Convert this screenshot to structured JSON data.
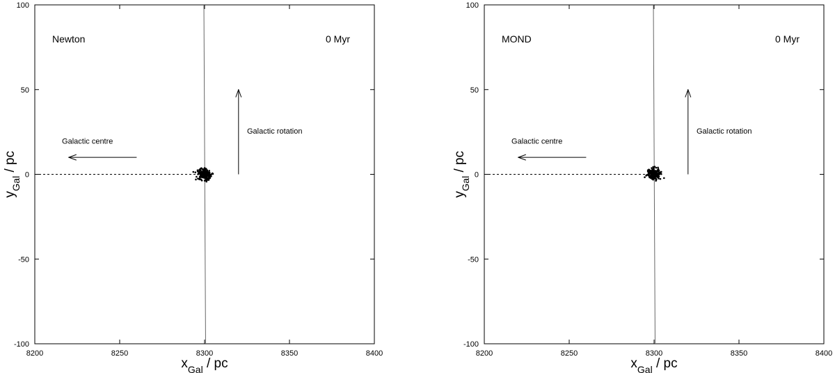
{
  "chart_data": [
    {
      "type": "scatter",
      "model_label": "Newton",
      "time_label": "0 Myr",
      "xlabel_main": "x",
      "xlabel_sub": "Gal",
      "xlabel_unit": " / pc",
      "ylabel_main": "y",
      "ylabel_sub": "Gal",
      "ylabel_unit": " / pc",
      "xlim": [
        8200,
        8400
      ],
      "ylim": [
        -100,
        100
      ],
      "xticks": [
        8200,
        8250,
        8300,
        8350,
        8400
      ],
      "yticks": [
        -100,
        -50,
        0,
        50,
        100
      ],
      "grid": false,
      "cluster": {
        "x": 8300,
        "y": 0,
        "spread_pc": 3
      },
      "orbit_line": [
        {
          "x": 8299.6,
          "y": 100
        },
        {
          "x": 8300.6,
          "y": -100
        }
      ],
      "dashed_line": [
        {
          "x": 8200,
          "y": 0
        },
        {
          "x": 8296,
          "y": 0
        }
      ],
      "annotations": [
        {
          "text": "Galactic centre",
          "arrow": {
            "from": [
              8260,
              10
            ],
            "to": [
              8220,
              10
            ]
          },
          "text_at": [
            8216,
            18
          ]
        },
        {
          "text": "Galactic rotation",
          "arrow": {
            "from": [
              8320,
              0
            ],
            "to": [
              8320,
              50
            ]
          },
          "text_at": [
            8325,
            24
          ]
        }
      ]
    },
    {
      "type": "scatter",
      "model_label": "MOND",
      "time_label": "0 Myr",
      "xlabel_main": "x",
      "xlabel_sub": "Gal",
      "xlabel_unit": " / pc",
      "ylabel_main": "y",
      "ylabel_sub": "Gal",
      "ylabel_unit": " / pc",
      "xlim": [
        8200,
        8400
      ],
      "ylim": [
        -100,
        100
      ],
      "xticks": [
        8200,
        8250,
        8300,
        8350,
        8400
      ],
      "yticks": [
        -100,
        -50,
        0,
        50,
        100
      ],
      "grid": false,
      "cluster": {
        "x": 8300,
        "y": 0,
        "spread_pc": 3
      },
      "orbit_line": [
        {
          "x": 8299.6,
          "y": 100
        },
        {
          "x": 8300.6,
          "y": -100
        }
      ],
      "dashed_line": [
        {
          "x": 8200,
          "y": 0
        },
        {
          "x": 8296,
          "y": 0
        }
      ],
      "annotations": [
        {
          "text": "Galactic centre",
          "arrow": {
            "from": [
              8260,
              10
            ],
            "to": [
              8220,
              10
            ]
          },
          "text_at": [
            8216,
            18
          ]
        },
        {
          "text": "Galactic rotation",
          "arrow": {
            "from": [
              8320,
              0
            ],
            "to": [
              8320,
              50
            ]
          },
          "text_at": [
            8325,
            24
          ]
        }
      ]
    }
  ]
}
